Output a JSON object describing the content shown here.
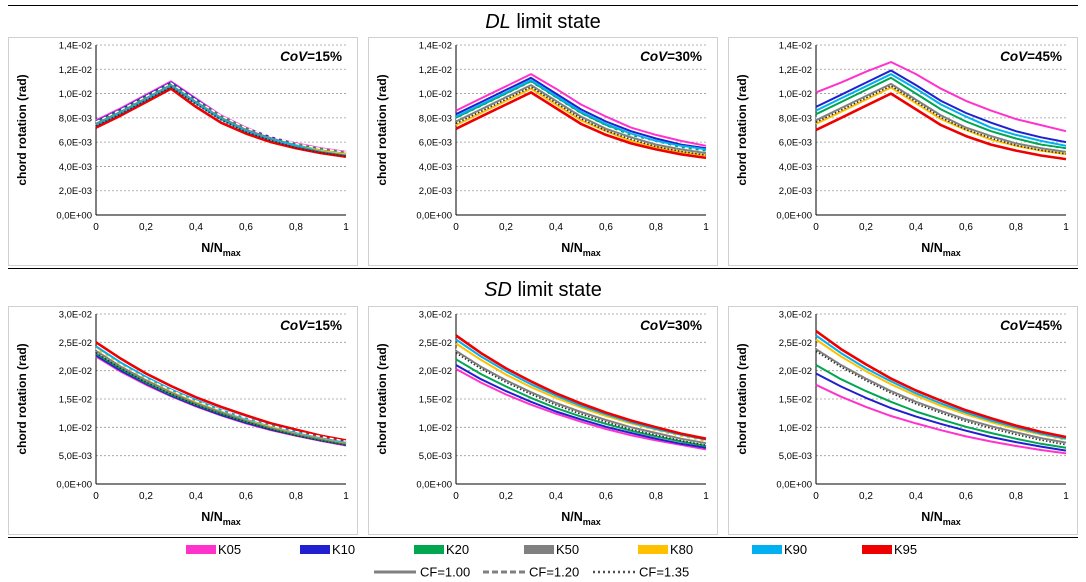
{
  "sections": [
    {
      "title_italic": "DL",
      "title_rest": "limit state"
    },
    {
      "title_italic": "SD",
      "title_rest": "limit state"
    }
  ],
  "axis_text": {
    "ylabel": "chord rotation (rad)",
    "xlabel_main": "N/N",
    "xlabel_sub": "max"
  },
  "colors": {
    "K05": "#ff33cc",
    "K10": "#2020d0",
    "K20": "#00a650",
    "K50": "#808080",
    "K80": "#ffc000",
    "K90": "#00b0f0",
    "K95": "#ee0000",
    "dark": "#303030"
  },
  "legend": {
    "series": [
      {
        "label": "K05",
        "color": "#ff33cc"
      },
      {
        "label": "K10",
        "color": "#2020d0"
      },
      {
        "label": "K20",
        "color": "#00a650"
      },
      {
        "label": "K50",
        "color": "#808080"
      },
      {
        "label": "K80",
        "color": "#ffc000"
      },
      {
        "label": "K90",
        "color": "#00b0f0"
      },
      {
        "label": "K95",
        "color": "#ee0000"
      }
    ],
    "styles": [
      {
        "label": "CF=1.00",
        "dash": "solid"
      },
      {
        "label": "CF=1.20",
        "dash": "dashed"
      },
      {
        "label": "CF=1.35",
        "dash": "dotted"
      }
    ]
  },
  "chart_data": [
    {
      "type": "line",
      "section": "DL limit state",
      "annotation_italic": "CoV",
      "annotation_rest": "=15%",
      "x": [
        0,
        0.1,
        0.2,
        0.3,
        0.4,
        0.5,
        0.6,
        0.7,
        0.8,
        0.9,
        1.0
      ],
      "ylim": [
        0,
        0.014
      ],
      "yticks": [
        "0,0E+00",
        "2,0E-03",
        "4,0E-03",
        "6,0E-03",
        "8,0E-03",
        "1,0E-02",
        "1,2E-02",
        "1,4E-02"
      ],
      "xticks": [
        "0",
        "0,2",
        "0,4",
        "0,6",
        "0,8",
        "1"
      ],
      "series": [
        {
          "key": "K05",
          "name": "K05",
          "values": [
            0.0078,
            0.0088,
            0.0099,
            0.011,
            0.0096,
            0.0082,
            0.0072,
            0.0064,
            0.0059,
            0.0055,
            0.0052
          ]
        },
        {
          "key": "K10",
          "name": "K10",
          "values": [
            0.0077,
            0.0087,
            0.0098,
            0.0109,
            0.0095,
            0.0081,
            0.0071,
            0.0064,
            0.0058,
            0.0054,
            0.0051
          ]
        },
        {
          "key": "K20",
          "name": "K20",
          "values": [
            0.0076,
            0.0086,
            0.0097,
            0.0108,
            0.0094,
            0.0081,
            0.0071,
            0.0063,
            0.0058,
            0.0054,
            0.0051
          ]
        },
        {
          "key": "K50",
          "name": "K50",
          "values": [
            0.0075,
            0.0085,
            0.0096,
            0.0107,
            0.0093,
            0.008,
            0.007,
            0.0063,
            0.0057,
            0.0053,
            0.005
          ]
        },
        {
          "key": "K80",
          "name": "K80",
          "values": [
            0.0074,
            0.0084,
            0.0095,
            0.0106,
            0.0092,
            0.0079,
            0.0069,
            0.0062,
            0.0057,
            0.0053,
            0.005
          ]
        },
        {
          "key": "K90",
          "name": "K90",
          "values": [
            0.0074,
            0.0084,
            0.0095,
            0.0106,
            0.0092,
            0.0079,
            0.0069,
            0.0062,
            0.0057,
            0.0052,
            0.0049
          ]
        },
        {
          "key": "K95",
          "name": "K95",
          "values": [
            0.0072,
            0.0082,
            0.0093,
            0.0104,
            0.0089,
            0.0076,
            0.0067,
            0.006,
            0.0055,
            0.0051,
            0.0048
          ]
        }
      ]
    },
    {
      "type": "line",
      "section": "DL limit state",
      "annotation_italic": "CoV",
      "annotation_rest": "=30%",
      "x": [
        0,
        0.1,
        0.2,
        0.3,
        0.4,
        0.5,
        0.6,
        0.7,
        0.8,
        0.9,
        1.0
      ],
      "ylim": [
        0,
        0.014
      ],
      "yticks": [
        "0,0E+00",
        "2,0E-03",
        "4,0E-03",
        "6,0E-03",
        "8,0E-03",
        "1,0E-02",
        "1,2E-02",
        "1,4E-02"
      ],
      "xticks": [
        "0",
        "0,2",
        "0,4",
        "0,6",
        "0,8",
        "1"
      ],
      "series": [
        {
          "key": "K05",
          "name": "K05",
          "values": [
            0.0086,
            0.0096,
            0.0106,
            0.0116,
            0.0104,
            0.0091,
            0.0081,
            0.0072,
            0.0066,
            0.0061,
            0.0057
          ]
        },
        {
          "key": "K10",
          "name": "K10",
          "values": [
            0.0083,
            0.0093,
            0.0103,
            0.0113,
            0.01,
            0.0087,
            0.0077,
            0.0069,
            0.0063,
            0.0058,
            0.0055
          ]
        },
        {
          "key": "K20",
          "name": "K20",
          "values": [
            0.008,
            0.009,
            0.01,
            0.011,
            0.0097,
            0.0084,
            0.0074,
            0.0066,
            0.0061,
            0.0056,
            0.0053
          ]
        },
        {
          "key": "K50",
          "name": "K50",
          "values": [
            0.0077,
            0.0087,
            0.0097,
            0.0107,
            0.0094,
            0.0081,
            0.0071,
            0.0064,
            0.0058,
            0.0054,
            0.0051
          ]
        },
        {
          "key": "K80",
          "name": "K80",
          "values": [
            0.0074,
            0.0084,
            0.0094,
            0.0104,
            0.0091,
            0.0078,
            0.0069,
            0.0061,
            0.0056,
            0.0052,
            0.0049
          ]
        },
        {
          "key": "K90",
          "name": "K90",
          "values": [
            0.0081,
            0.0091,
            0.0101,
            0.0111,
            0.0098,
            0.0085,
            0.0075,
            0.0067,
            0.0061,
            0.0057,
            0.0054
          ]
        },
        {
          "key": "K95",
          "name": "K95",
          "values": [
            0.0071,
            0.0081,
            0.0091,
            0.0101,
            0.0088,
            0.0075,
            0.0066,
            0.0059,
            0.0054,
            0.005,
            0.0047
          ]
        }
      ]
    },
    {
      "type": "line",
      "section": "DL limit state",
      "annotation_italic": "CoV",
      "annotation_rest": "=45%",
      "x": [
        0,
        0.1,
        0.2,
        0.3,
        0.4,
        0.5,
        0.6,
        0.7,
        0.8,
        0.9,
        1.0
      ],
      "ylim": [
        0,
        0.014
      ],
      "yticks": [
        "0,0E+00",
        "2,0E-03",
        "4,0E-03",
        "6,0E-03",
        "8,0E-03",
        "1,0E-02",
        "1,2E-02",
        "1,4E-02"
      ],
      "xticks": [
        "0",
        "0,2",
        "0,4",
        "0,6",
        "0,8",
        "1"
      ],
      "series": [
        {
          "key": "K05",
          "name": "K05",
          "values": [
            0.0101,
            0.0109,
            0.0118,
            0.0126,
            0.0116,
            0.0104,
            0.0094,
            0.0086,
            0.0079,
            0.0074,
            0.0069
          ]
        },
        {
          "key": "K10",
          "name": "K10",
          "values": [
            0.0089,
            0.0099,
            0.0109,
            0.0119,
            0.0107,
            0.0094,
            0.0084,
            0.0076,
            0.0069,
            0.0064,
            0.006
          ]
        },
        {
          "key": "K20",
          "name": "K20",
          "values": [
            0.0083,
            0.0093,
            0.0103,
            0.0113,
            0.01,
            0.0087,
            0.0077,
            0.0069,
            0.0063,
            0.0058,
            0.0055
          ]
        },
        {
          "key": "K50",
          "name": "K50",
          "values": [
            0.0078,
            0.0088,
            0.0098,
            0.0108,
            0.0095,
            0.0082,
            0.0072,
            0.0065,
            0.0059,
            0.0055,
            0.0052
          ]
        },
        {
          "key": "K80",
          "name": "K80",
          "values": [
            0.0075,
            0.0085,
            0.0095,
            0.0105,
            0.0092,
            0.0079,
            0.007,
            0.0062,
            0.0057,
            0.0053,
            0.005
          ]
        },
        {
          "key": "K90",
          "name": "K90",
          "values": [
            0.0086,
            0.0096,
            0.0106,
            0.0116,
            0.0104,
            0.0091,
            0.0081,
            0.0072,
            0.0066,
            0.0061,
            0.0057
          ]
        },
        {
          "key": "K95",
          "name": "K95",
          "values": [
            0.007,
            0.008,
            0.009,
            0.01,
            0.0087,
            0.0074,
            0.0065,
            0.0058,
            0.0053,
            0.0049,
            0.0046
          ]
        }
      ]
    },
    {
      "type": "line",
      "section": "SD limit state",
      "annotation_italic": "CoV",
      "annotation_rest": "=15%",
      "x": [
        0,
        0.1,
        0.2,
        0.3,
        0.4,
        0.5,
        0.6,
        0.7,
        0.8,
        0.9,
        1.0
      ],
      "ylim": [
        0,
        0.03
      ],
      "yticks": [
        "0,0E+00",
        "5,0E-03",
        "1,0E-02",
        "1,5E-02",
        "2,0E-02",
        "2,5E-02",
        "3,0E-02"
      ],
      "xticks": [
        "0",
        "0,2",
        "0,4",
        "0,6",
        "0,8",
        "1"
      ],
      "series": [
        {
          "key": "K05",
          "name": "K05",
          "values": [
            0.0225,
            0.0198,
            0.0175,
            0.0155,
            0.0137,
            0.0121,
            0.0107,
            0.0095,
            0.0085,
            0.0076,
            0.0068
          ]
        },
        {
          "key": "K10",
          "name": "K10",
          "values": [
            0.0227,
            0.02,
            0.0177,
            0.0156,
            0.0138,
            0.0122,
            0.0108,
            0.0096,
            0.0086,
            0.0077,
            0.0069
          ]
        },
        {
          "key": "K20",
          "name": "K20",
          "values": [
            0.023,
            0.0203,
            0.0179,
            0.0158,
            0.014,
            0.0124,
            0.011,
            0.0098,
            0.0087,
            0.0078,
            0.007
          ]
        },
        {
          "key": "K50",
          "name": "K50",
          "values": [
            0.0235,
            0.0207,
            0.0183,
            0.0162,
            0.0143,
            0.0127,
            0.0113,
            0.01,
            0.0089,
            0.008,
            0.0072
          ]
        },
        {
          "key": "K80",
          "name": "K80",
          "values": [
            0.024,
            0.0212,
            0.0187,
            0.0165,
            0.0146,
            0.013,
            0.0115,
            0.0102,
            0.0091,
            0.0082,
            0.0073
          ]
        },
        {
          "key": "K90",
          "name": "K90",
          "values": [
            0.0243,
            0.0214,
            0.0189,
            0.0167,
            0.0148,
            0.0131,
            0.0116,
            0.0104,
            0.0092,
            0.0083,
            0.0074
          ]
        },
        {
          "key": "K95",
          "name": "K95",
          "values": [
            0.025,
            0.0221,
            0.0195,
            0.0173,
            0.0153,
            0.0136,
            0.0121,
            0.0107,
            0.0096,
            0.0085,
            0.0077
          ]
        }
      ]
    },
    {
      "type": "line",
      "section": "SD limit state",
      "annotation_italic": "CoV",
      "annotation_rest": "=30%",
      "x": [
        0,
        0.1,
        0.2,
        0.3,
        0.4,
        0.5,
        0.6,
        0.7,
        0.8,
        0.9,
        1.0
      ],
      "ylim": [
        0,
        0.03
      ],
      "yticks": [
        "0,0E+00",
        "5,0E-03",
        "1,0E-02",
        "1,5E-02",
        "2,0E-02",
        "2,5E-02",
        "3,0E-02"
      ],
      "xticks": [
        "0",
        "0,2",
        "0,4",
        "0,6",
        "0,8",
        "1"
      ],
      "series": [
        {
          "key": "K05",
          "name": "K05",
          "values": [
            0.0203,
            0.0179,
            0.0158,
            0.014,
            0.0124,
            0.011,
            0.0097,
            0.0086,
            0.0077,
            0.0069,
            0.0061
          ]
        },
        {
          "key": "K10",
          "name": "K10",
          "values": [
            0.021,
            0.0185,
            0.0164,
            0.0145,
            0.0128,
            0.0114,
            0.0101,
            0.009,
            0.008,
            0.0071,
            0.0064
          ]
        },
        {
          "key": "K20",
          "name": "K20",
          "values": [
            0.022,
            0.0194,
            0.0172,
            0.0152,
            0.0134,
            0.0119,
            0.0106,
            0.0094,
            0.0084,
            0.0075,
            0.0067
          ]
        },
        {
          "key": "K50",
          "name": "K50",
          "values": [
            0.0235,
            0.0207,
            0.0183,
            0.0162,
            0.0143,
            0.0127,
            0.0113,
            0.01,
            0.009,
            0.008,
            0.0072
          ]
        },
        {
          "key": "K80",
          "name": "K80",
          "values": [
            0.0248,
            0.0219,
            0.0193,
            0.0171,
            0.0152,
            0.0135,
            0.012,
            0.0107,
            0.0095,
            0.0085,
            0.0076
          ]
        },
        {
          "key": "K90",
          "name": "K90",
          "values": [
            0.0255,
            0.0225,
            0.0199,
            0.0176,
            0.0156,
            0.0138,
            0.0123,
            0.0109,
            0.0097,
            0.0087,
            0.0078
          ]
        },
        {
          "key": "K95",
          "name": "K95",
          "values": [
            0.0262,
            0.0231,
            0.0204,
            0.0181,
            0.016,
            0.0142,
            0.0126,
            0.0112,
            0.01,
            0.0089,
            0.008
          ]
        }
      ]
    },
    {
      "type": "line",
      "section": "SD limit state",
      "annotation_italic": "CoV",
      "annotation_rest": "=45%",
      "x": [
        0,
        0.1,
        0.2,
        0.3,
        0.4,
        0.5,
        0.6,
        0.7,
        0.8,
        0.9,
        1.0
      ],
      "ylim": [
        0,
        0.03
      ],
      "yticks": [
        "0,0E+00",
        "5,0E-03",
        "1,0E-02",
        "1,5E-02",
        "2,0E-02",
        "2,5E-02",
        "3,0E-02"
      ],
      "xticks": [
        "0",
        "0,2",
        "0,4",
        "0,6",
        "0,8",
        "1"
      ],
      "series": [
        {
          "key": "K05",
          "name": "K05",
          "values": [
            0.0175,
            0.0154,
            0.0136,
            0.012,
            0.0107,
            0.0095,
            0.0084,
            0.0075,
            0.0067,
            0.006,
            0.0054
          ]
        },
        {
          "key": "K10",
          "name": "K10",
          "values": [
            0.0195,
            0.0172,
            0.0152,
            0.0134,
            0.0119,
            0.0106,
            0.0094,
            0.0083,
            0.0074,
            0.0066,
            0.0059
          ]
        },
        {
          "key": "K20",
          "name": "K20",
          "values": [
            0.021,
            0.0185,
            0.0164,
            0.0145,
            0.0128,
            0.0114,
            0.0101,
            0.009,
            0.008,
            0.0071,
            0.0064
          ]
        },
        {
          "key": "K50",
          "name": "K50",
          "values": [
            0.0238,
            0.021,
            0.0186,
            0.0164,
            0.0145,
            0.0129,
            0.0114,
            0.0102,
            0.0091,
            0.0081,
            0.0073
          ]
        },
        {
          "key": "K80",
          "name": "K80",
          "values": [
            0.0255,
            0.0225,
            0.0199,
            0.0176,
            0.0156,
            0.0138,
            0.0123,
            0.0109,
            0.0097,
            0.0087,
            0.0078
          ]
        },
        {
          "key": "K90",
          "name": "K90",
          "values": [
            0.0262,
            0.0231,
            0.0204,
            0.0181,
            0.016,
            0.0142,
            0.0126,
            0.0112,
            0.01,
            0.0089,
            0.008
          ]
        },
        {
          "key": "K95",
          "name": "K95",
          "values": [
            0.027,
            0.0238,
            0.0211,
            0.0186,
            0.0165,
            0.0147,
            0.013,
            0.0116,
            0.0103,
            0.0092,
            0.0083
          ]
        }
      ]
    }
  ]
}
